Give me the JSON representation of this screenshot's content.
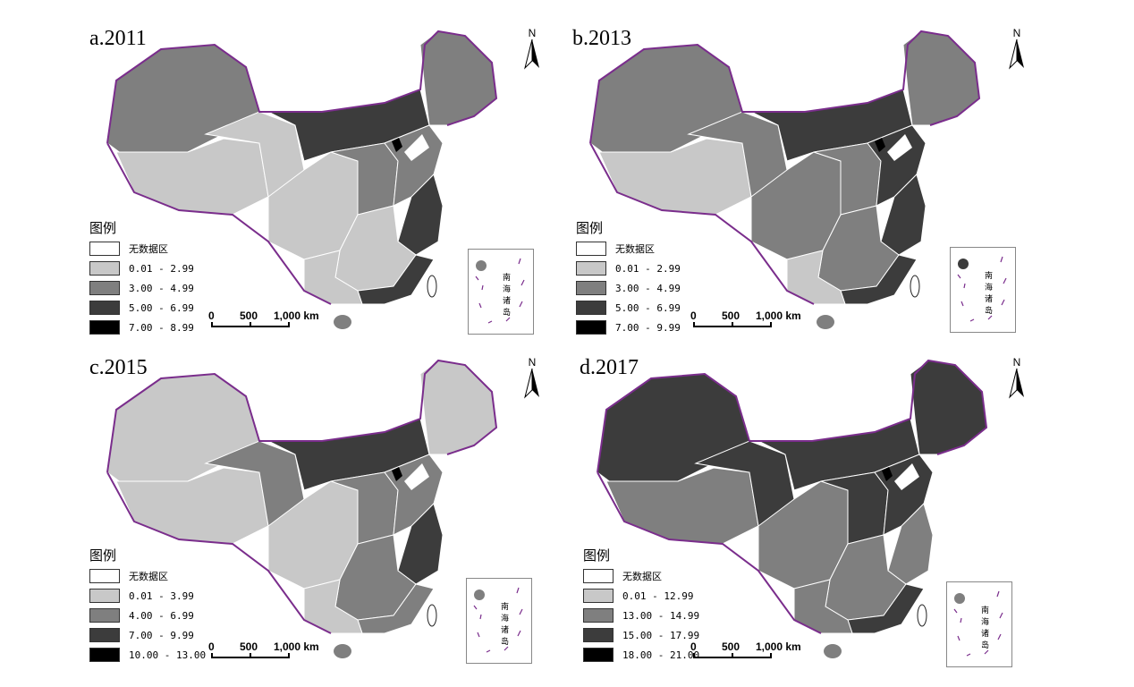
{
  "panels": [
    {
      "title": "a.2011",
      "legend_title": "图例",
      "legend": [
        {
          "label": "无数据区",
          "color": "#ffffff"
        },
        {
          "label": "0.01 - 2.99",
          "color": "#c8c8c8"
        },
        {
          "label": "3.00 - 4.99",
          "color": "#7f7f7f"
        },
        {
          "label": "5.00 - 6.99",
          "color": "#3c3c3c"
        },
        {
          "label": "7.00 - 8.99",
          "color": "#000000"
        }
      ]
    },
    {
      "title": "b.2013",
      "legend_title": "图例",
      "legend": [
        {
          "label": "无数据区",
          "color": "#ffffff"
        },
        {
          "label": "0.01 - 2.99",
          "color": "#c8c8c8"
        },
        {
          "label": "3.00 - 4.99",
          "color": "#7f7f7f"
        },
        {
          "label": "5.00 - 6.99",
          "color": "#3c3c3c"
        },
        {
          "label": "7.00 - 9.99",
          "color": "#000000"
        }
      ]
    },
    {
      "title": "c.2015",
      "legend_title": "图例",
      "legend": [
        {
          "label": "无数据区",
          "color": "#ffffff"
        },
        {
          "label": "0.01 - 3.99",
          "color": "#c8c8c8"
        },
        {
          "label": "4.00 - 6.99",
          "color": "#7f7f7f"
        },
        {
          "label": "7.00 - 9.99",
          "color": "#3c3c3c"
        },
        {
          "label": "10.00 - 13.00",
          "color": "#000000"
        }
      ]
    },
    {
      "title": "d.2017",
      "legend_title": "图例",
      "legend": [
        {
          "label": "无数据区",
          "color": "#ffffff"
        },
        {
          "label": "0.01 - 12.99",
          "color": "#c8c8c8"
        },
        {
          "label": "13.00 - 14.99",
          "color": "#7f7f7f"
        },
        {
          "label": "15.00 - 17.99",
          "color": "#3c3c3c"
        },
        {
          "label": "18.00 - 21.00",
          "color": "#000000"
        }
      ]
    }
  ],
  "north_label": "N",
  "scale_labels": [
    "0",
    "500",
    "1,000 km"
  ],
  "inset_label": "南海诸岛",
  "colors": {
    "border": "#7a2d8c",
    "province_line": "#ffffff",
    "dark_outline": "#222222"
  }
}
